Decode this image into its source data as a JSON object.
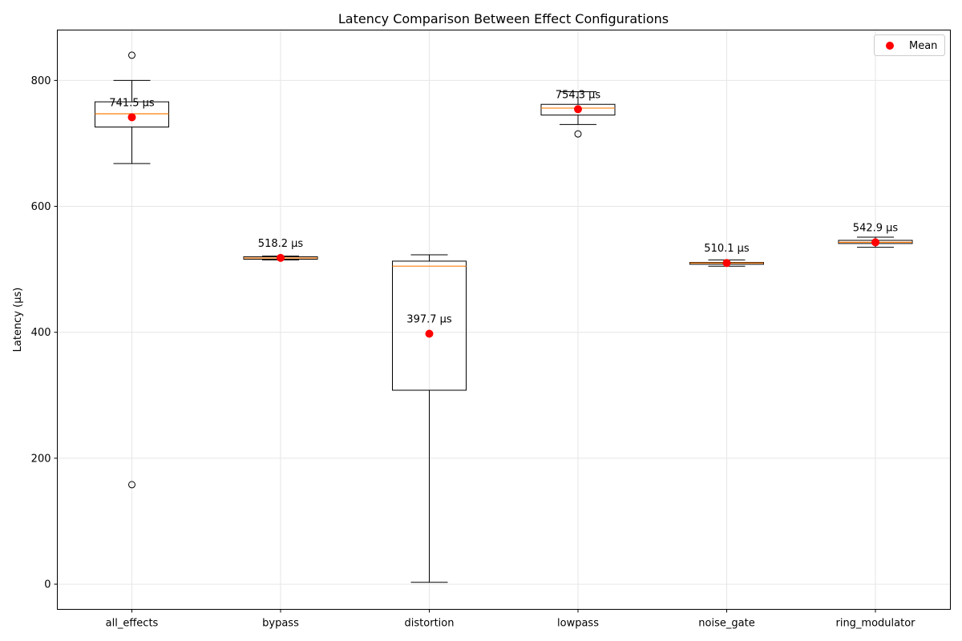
{
  "chart_data": {
    "type": "box",
    "title": "Latency Comparison Between Effect Configurations",
    "xlabel": "",
    "ylabel": "Latency (µs)",
    "ylim": [
      -40,
      880
    ],
    "yticks": [
      0,
      200,
      400,
      600,
      800
    ],
    "grid": true,
    "legend": {
      "placement": "top-right",
      "entries": [
        "Mean"
      ]
    },
    "colors": {
      "mean": "#ff0000",
      "median": "#ff7f0e",
      "box": "#000000",
      "grid": "#e6e6e6"
    },
    "categories": [
      "all_effects",
      "bypass",
      "distortion",
      "lowpass",
      "noise_gate",
      "ring_modulator"
    ],
    "boxes": [
      {
        "name": "all_effects",
        "whisker_low": 668,
        "q1": 726,
        "median": 747,
        "q3": 766,
        "whisker_high": 800,
        "outliers": [
          840,
          158
        ],
        "mean": 741.5,
        "mean_label": "741.5 µs"
      },
      {
        "name": "bypass",
        "whisker_low": 515,
        "q1": 516,
        "median": 518,
        "q3": 520,
        "whisker_high": 521,
        "outliers": [],
        "mean": 518.2,
        "mean_label": "518.2 µs"
      },
      {
        "name": "distortion",
        "whisker_low": 3,
        "q1": 308,
        "median": 505,
        "q3": 513,
        "whisker_high": 523,
        "outliers": [],
        "mean": 397.7,
        "mean_label": "397.7 µs"
      },
      {
        "name": "lowpass",
        "whisker_low": 730,
        "q1": 745,
        "median": 756,
        "q3": 762,
        "whisker_high": 782,
        "outliers": [
          715
        ],
        "mean": 754.3,
        "mean_label": "754.3 µs"
      },
      {
        "name": "noise_gate",
        "whisker_low": 505,
        "q1": 508,
        "median": 510,
        "q3": 511,
        "whisker_high": 515,
        "outliers": [],
        "mean": 510.1,
        "mean_label": "510.1 µs"
      },
      {
        "name": "ring_modulator",
        "whisker_low": 535,
        "q1": 541,
        "median": 543,
        "q3": 546,
        "whisker_high": 551,
        "outliers": [],
        "mean": 542.9,
        "mean_label": "542.9 µs"
      }
    ]
  }
}
